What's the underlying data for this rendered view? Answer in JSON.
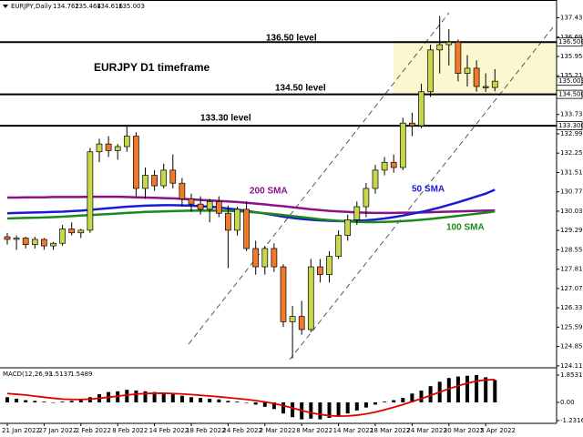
{
  "chart_data": [
    {
      "type": "candlestick",
      "title": "EURJPY D1 timeframe",
      "symbol": "EURJPY,Daily",
      "categories": [
        "21 Jan 2022",
        null,
        null,
        null,
        "27 Jan 2022",
        null,
        null,
        null,
        "2 Feb 2022",
        null,
        null,
        null,
        "8 Feb 2022",
        null,
        null,
        null,
        "14 Feb 2022",
        null,
        null,
        null,
        "18 Feb 2022",
        null,
        null,
        null,
        "24 Feb 2022",
        null,
        null,
        null,
        "2 Mar 2022",
        null,
        null,
        null,
        "8 Mar 2022",
        null,
        null,
        null,
        "14 Mar 2022",
        null,
        null,
        null,
        "18 Mar 2022",
        null,
        null,
        null,
        "24 Mar 2022",
        null,
        null,
        null,
        "30 Mar 2022",
        null,
        null,
        null,
        "5 Apr 2022",
        null
      ],
      "open": [
        129.05,
        128.95,
        129.0,
        128.75,
        128.95,
        128.7,
        128.8,
        129.35,
        129.2,
        129.3,
        132.3,
        132.6,
        132.35,
        132.5,
        132.9,
        130.9,
        131.4,
        131.0,
        131.6,
        131.1,
        130.5,
        130.3,
        130.1,
        130.4,
        129.95,
        129.3,
        130.1,
        128.6,
        127.9,
        128.6,
        127.9,
        125.8,
        126.0,
        125.5,
        127.9,
        127.6,
        128.3,
        129.1,
        129.7,
        130.2,
        130.9,
        131.6,
        131.9,
        131.7,
        133.4,
        133.3,
        134.6,
        136.2,
        136.4,
        136.5,
        135.3,
        135.5,
        134.8,
        134.762
      ],
      "high": [
        129.2,
        129.1,
        129.05,
        129.05,
        129.0,
        128.85,
        129.5,
        129.6,
        129.35,
        132.45,
        132.8,
        132.9,
        132.6,
        133.3,
        133.05,
        131.7,
        131.6,
        131.85,
        132.2,
        131.3,
        130.7,
        130.6,
        130.5,
        130.6,
        130.25,
        130.2,
        130.4,
        128.9,
        128.7,
        128.8,
        128.0,
        126.4,
        126.6,
        128.2,
        128.2,
        128.5,
        129.3,
        129.9,
        130.4,
        131.1,
        131.8,
        132.1,
        132.2,
        133.6,
        133.8,
        134.9,
        136.4,
        137.5,
        137.0,
        136.6,
        136.0,
        135.8,
        135.3,
        135.464
      ],
      "low": [
        128.75,
        128.55,
        128.6,
        128.6,
        128.55,
        128.55,
        128.7,
        129.1,
        129.0,
        129.2,
        131.9,
        132.1,
        132.0,
        132.3,
        130.6,
        130.5,
        130.8,
        130.9,
        130.9,
        130.2,
        130.0,
        129.9,
        129.6,
        129.8,
        127.85,
        129.1,
        128.5,
        127.6,
        127.6,
        127.7,
        125.6,
        124.4,
        125.3,
        125.4,
        127.3,
        127.3,
        128.2,
        128.9,
        129.5,
        129.8,
        130.7,
        131.4,
        131.5,
        131.6,
        132.9,
        133.2,
        134.4,
        135.3,
        135.6,
        135.0,
        134.8,
        134.6,
        134.6,
        134.616
      ],
      "close": [
        128.95,
        129.0,
        128.75,
        128.95,
        128.7,
        128.8,
        129.35,
        129.2,
        129.3,
        132.3,
        132.6,
        132.35,
        132.5,
        132.9,
        130.9,
        131.4,
        131.0,
        131.6,
        131.1,
        130.5,
        130.3,
        130.1,
        130.4,
        129.95,
        129.3,
        130.1,
        128.6,
        127.9,
        128.6,
        127.9,
        125.8,
        126.0,
        125.5,
        127.9,
        127.6,
        128.3,
        129.1,
        129.7,
        130.2,
        130.9,
        131.6,
        131.9,
        131.7,
        133.4,
        133.3,
        134.6,
        136.2,
        136.4,
        136.5,
        135.3,
        135.5,
        134.8,
        134.75,
        135.003
      ],
      "up_color": "#c8d64c",
      "down_color": "#f07a2a",
      "series": [
        {
          "name": "200 SMA",
          "color": "#8a118a",
          "values": [
            130.55,
            130.55,
            130.56,
            130.56,
            130.56,
            130.57,
            130.57,
            130.57,
            130.57,
            130.58,
            130.58,
            130.58,
            130.58,
            130.57,
            130.56,
            130.55,
            130.54,
            130.53,
            130.52,
            130.5,
            130.48,
            130.46,
            130.44,
            130.42,
            130.4,
            130.38,
            130.35,
            130.32,
            130.29,
            130.25,
            130.22,
            130.18,
            130.14,
            130.1,
            130.07,
            130.04,
            130.02,
            130.0,
            129.98,
            129.97,
            129.96,
            129.96,
            129.96,
            129.97,
            129.97,
            129.98,
            129.99,
            130.0,
            130.01,
            130.02,
            130.03,
            130.04,
            130.05,
            130.06
          ]
        },
        {
          "name": "50 SMA",
          "color": "#1a1ad6",
          "values": [
            129.95,
            129.96,
            129.97,
            129.98,
            129.99,
            130.0,
            130.01,
            130.03,
            130.05,
            130.08,
            130.11,
            130.14,
            130.17,
            130.2,
            130.22,
            130.24,
            130.25,
            130.26,
            130.26,
            130.25,
            130.24,
            130.22,
            130.2,
            130.17,
            130.13,
            130.09,
            130.04,
            129.99,
            129.94,
            129.88,
            129.82,
            129.77,
            129.73,
            129.7,
            129.68,
            129.66,
            129.65,
            129.65,
            129.66,
            129.68,
            129.71,
            129.75,
            129.8,
            129.86,
            129.93,
            130.0,
            130.08,
            130.17,
            130.27,
            130.37,
            130.48,
            130.59,
            130.7,
            130.85
          ]
        },
        {
          "name": "100 SMA",
          "color": "#1b8a1b",
          "values": [
            129.75,
            129.76,
            129.77,
            129.78,
            129.79,
            129.8,
            129.82,
            129.84,
            129.86,
            129.88,
            129.9,
            129.92,
            129.94,
            129.96,
            129.98,
            130.0,
            130.01,
            130.02,
            130.03,
            130.04,
            130.05,
            130.05,
            130.05,
            130.05,
            130.04,
            130.03,
            130.01,
            129.98,
            129.95,
            129.92,
            129.88,
            129.84,
            129.8,
            129.76,
            129.72,
            129.69,
            129.66,
            129.64,
            129.62,
            129.61,
            129.61,
            129.62,
            129.63,
            129.65,
            129.67,
            129.7,
            129.73,
            129.77,
            129.81,
            129.85,
            129.89,
            129.93,
            129.97,
            130.02
          ]
        }
      ],
      "levels": [
        {
          "value": 136.5,
          "label": "136.500",
          "text": "136.50 level"
        },
        {
          "value": 134.5,
          "label": "134.500",
          "text": "134.50 level"
        },
        {
          "value": 133.3,
          "label": "133.300",
          "text": "133.30 level"
        }
      ],
      "ylim": [
        124.07,
        138.11
      ],
      "yticks": [
        137.43,
        136.69,
        135.95,
        135.21,
        134.47,
        133.73,
        132.99,
        132.25,
        131.51,
        130.77,
        130.03,
        129.29,
        128.55,
        127.81,
        127.07,
        126.33,
        125.59,
        124.85,
        124.11
      ]
    },
    {
      "type": "macd",
      "title": "MACD(12,26,9)",
      "color": "#000000",
      "values": [
        0.35,
        0.25,
        0.15,
        0.1,
        0.05,
        0.0,
        0.05,
        0.1,
        0.15,
        0.35,
        0.55,
        0.7,
        0.75,
        0.85,
        0.8,
        0.75,
        0.7,
        0.6,
        0.55,
        0.45,
        0.35,
        0.3,
        0.25,
        0.2,
        0.1,
        0.05,
        0.0,
        -0.15,
        -0.3,
        -0.45,
        -0.75,
        -1.0,
        -1.15,
        -1.1,
        -1.15,
        -1.05,
        -0.9,
        -0.75,
        -0.55,
        -0.35,
        -0.15,
        0.05,
        0.15,
        0.3,
        0.6,
        0.8,
        1.1,
        1.4,
        1.65,
        1.75,
        1.8,
        1.85,
        1.7,
        1.5137
      ],
      "signal": {
        "color": "#e00000",
        "values": [
          0.6,
          0.55,
          0.5,
          0.42,
          0.35,
          0.28,
          0.22,
          0.2,
          0.2,
          0.22,
          0.28,
          0.35,
          0.42,
          0.5,
          0.56,
          0.6,
          0.62,
          0.62,
          0.6,
          0.57,
          0.53,
          0.48,
          0.43,
          0.38,
          0.32,
          0.26,
          0.2,
          0.12,
          0.03,
          -0.08,
          -0.22,
          -0.38,
          -0.55,
          -0.7,
          -0.82,
          -0.9,
          -0.93,
          -0.92,
          -0.87,
          -0.78,
          -0.66,
          -0.5,
          -0.33,
          -0.15,
          0.05,
          0.25,
          0.47,
          0.7,
          0.92,
          1.12,
          1.3,
          1.44,
          1.52,
          1.5489
        ]
      },
      "ylim": [
        -1.42,
        2.28
      ],
      "yticks": [
        1.8531,
        {
          "value": 0,
          "label": "0.00"
        },
        -1.2316
      ]
    }
  ]
}
